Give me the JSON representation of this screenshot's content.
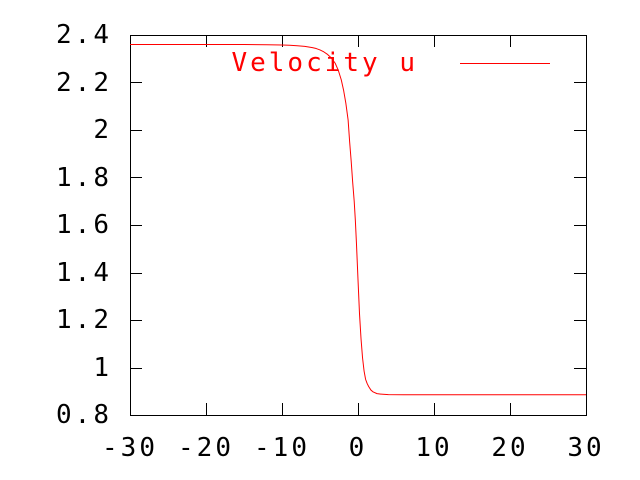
{
  "app": {
    "name": "gnuplot plot window",
    "background_color": "#ffffff"
  },
  "chart_data": {
    "type": "line",
    "title": "",
    "xlabel": "",
    "ylabel": "",
    "xlim": [
      -30,
      30
    ],
    "ylim": [
      0.8,
      2.4
    ],
    "grid": false,
    "border": true,
    "tick_style": "inward-mirrored",
    "axis_color": "#000000",
    "background_color": "#ffffff",
    "xticks": {
      "values": [
        -30,
        -20,
        -10,
        0,
        10,
        20,
        30
      ],
      "labels": [
        "-30",
        "-20",
        "-10",
        "0",
        "10",
        "20",
        "30"
      ]
    },
    "yticks": {
      "values": [
        0.8,
        1.0,
        1.2,
        1.4,
        1.6,
        1.8,
        2.0,
        2.2,
        2.4
      ],
      "labels": [
        "0.8",
        "1",
        "1.2",
        "1.4",
        "1.6",
        "1.8",
        "2",
        "2.2",
        "2.4"
      ]
    },
    "legend": {
      "position": "top-right-inside",
      "entries": [
        {
          "label": "Velocity u",
          "color": "#ff0000"
        }
      ]
    },
    "series": [
      {
        "name": "Velocity u",
        "color": "#ff0000",
        "style": "line",
        "points": [
          [
            -30,
            2.36
          ],
          [
            -25,
            2.36
          ],
          [
            -20,
            2.36
          ],
          [
            -15,
            2.36
          ],
          [
            -12,
            2.359
          ],
          [
            -10,
            2.358
          ],
          [
            -9,
            2.357
          ],
          [
            -8,
            2.355
          ],
          [
            -7,
            2.352
          ],
          [
            -6,
            2.347
          ],
          [
            -5.5,
            2.343
          ],
          [
            -5,
            2.337
          ],
          [
            -4.5,
            2.329
          ],
          [
            -4,
            2.318
          ],
          [
            -3.5,
            2.303
          ],
          [
            -3,
            2.281
          ],
          [
            -2.6,
            2.252
          ],
          [
            -2.2,
            2.211
          ],
          [
            -1.9,
            2.168
          ],
          [
            -1.6,
            2.113
          ],
          [
            -1.3,
            2.042
          ],
          [
            -1.1,
            1.95
          ],
          [
            -0.9,
            1.87
          ],
          [
            -0.7,
            1.78
          ],
          [
            -0.5,
            1.7
          ],
          [
            -0.35,
            1.62
          ],
          [
            -0.2,
            1.52
          ],
          [
            0,
            1.37
          ],
          [
            0.2,
            1.225
          ],
          [
            0.4,
            1.12
          ],
          [
            0.6,
            1.04
          ],
          [
            0.8,
            0.985
          ],
          [
            1,
            0.95
          ],
          [
            1.2,
            0.933
          ],
          [
            1.4,
            0.92
          ],
          [
            1.7,
            0.905
          ],
          [
            2,
            0.897
          ],
          [
            2.5,
            0.89
          ],
          [
            3,
            0.888
          ],
          [
            4,
            0.886
          ],
          [
            6,
            0.885
          ],
          [
            10,
            0.885
          ],
          [
            15,
            0.885
          ],
          [
            20,
            0.885
          ],
          [
            30,
            0.885
          ]
        ]
      }
    ]
  }
}
